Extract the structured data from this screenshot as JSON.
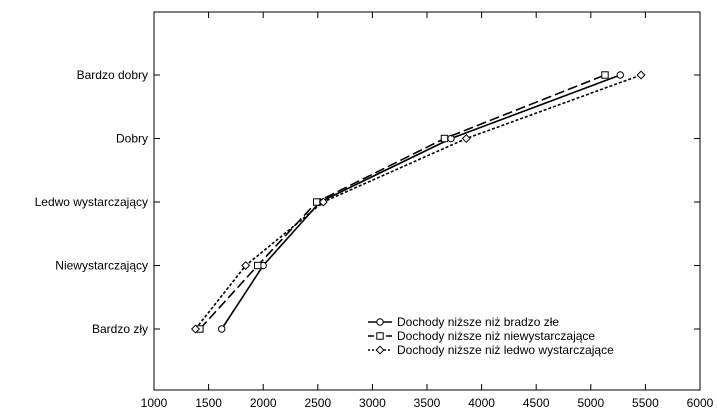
{
  "chart_data": {
    "type": "line",
    "title": "",
    "xlabel": "",
    "ylabel": "",
    "xlim": [
      1000,
      6000
    ],
    "x_ticks": [
      1000,
      1500,
      2000,
      2500,
      3000,
      3500,
      4000,
      4500,
      5000,
      5500,
      6000
    ],
    "categories": [
      "Bardzo zły",
      "Niewystarczający",
      "Ledwo wystarczający",
      "Dobry",
      "Bardzo dobry"
    ],
    "grid": false,
    "legend_position": "bottom-right",
    "series": [
      {
        "name": "Dochody niższe niż bradzo złe",
        "marker": "circle",
        "dash": "solid",
        "x": [
          1620,
          2000,
          2520,
          3720,
          5270
        ],
        "y": [
          "Bardzo zły",
          "Niewystarczający",
          "Ledwo wystarczający",
          "Dobry",
          "Bardzo dobry"
        ]
      },
      {
        "name": "Dochody niższe niż niewystarczające",
        "marker": "square",
        "dash": "long-dash",
        "x": [
          1420,
          1950,
          2490,
          3660,
          5130
        ],
        "y": [
          "Bardzo zły",
          "Niewystarczający",
          "Ledwo wystarczający",
          "Dobry",
          "Bardzo dobry"
        ]
      },
      {
        "name": "Dochody niższe niż ledwo wystarczające",
        "marker": "diamond",
        "dash": "short-dash",
        "x": [
          1380,
          1840,
          2550,
          3860,
          5460
        ],
        "y": [
          "Bardzo zły",
          "Niewystarczający",
          "Ledwo wystarczający",
          "Dobry",
          "Bardzo dobry"
        ]
      }
    ]
  }
}
